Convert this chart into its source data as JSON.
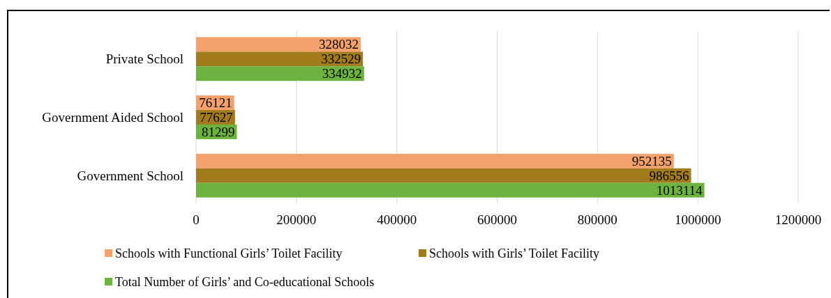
{
  "chart_data": {
    "type": "bar",
    "orientation": "horizontal",
    "categories": [
      "Private School",
      "Government Aided School",
      "Government School"
    ],
    "series": [
      {
        "name": "Schools with Functional Girls’ Toilet Facility",
        "color": "#f4a16c",
        "values": [
          328032,
          76121,
          952135
        ]
      },
      {
        "name": "Schools with Girls’ Toilet Facility",
        "color": "#a27c1c",
        "values": [
          332529,
          77627,
          986556
        ]
      },
      {
        "name": "Total Number of Girls’ and Co-educational Schools",
        "color": "#6cb33f",
        "values": [
          334932,
          81299,
          1013114
        ]
      }
    ],
    "xlim": [
      0,
      1200000
    ],
    "xticks": [
      0,
      200000,
      400000,
      600000,
      800000,
      1000000,
      1200000
    ],
    "grid": "x",
    "legend": "bottom",
    "data_labels": true
  }
}
